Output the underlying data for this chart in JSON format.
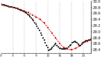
{
  "hours": [
    0,
    1,
    2,
    3,
    4,
    5,
    6,
    7,
    8,
    9,
    10,
    11,
    12,
    13,
    14,
    15,
    16,
    17,
    18,
    19,
    20,
    21,
    22,
    23
  ],
  "pressure": [
    29.88,
    29.85,
    29.82,
    29.8,
    29.76,
    29.72,
    29.68,
    29.62,
    29.55,
    29.48,
    29.4,
    29.28,
    29.12,
    28.95,
    28.78,
    28.6,
    28.48,
    28.42,
    28.4,
    28.44,
    28.52,
    28.62,
    28.68,
    28.72
  ],
  "black_dots_x": [
    0.0,
    0.2,
    0.5,
    0.8,
    1.1,
    1.3,
    1.6,
    1.9,
    2.1,
    2.4,
    2.7,
    3.0,
    3.2,
    3.5,
    3.8,
    4.1,
    4.4,
    4.7,
    5.0,
    5.3,
    5.6,
    5.9,
    6.2,
    6.5,
    6.8,
    7.1,
    7.4,
    7.7,
    8.0,
    8.3,
    8.6,
    8.9,
    9.2,
    9.5,
    9.8,
    10.1,
    10.4,
    10.7,
    11.0,
    11.3,
    11.6,
    11.9,
    12.2,
    12.5,
    12.8,
    13.1,
    13.4,
    13.7,
    14.0,
    14.3,
    14.6,
    14.9,
    15.2,
    15.5,
    15.8,
    16.1,
    16.4,
    16.7,
    17.0,
    17.3,
    17.6,
    17.9,
    18.2,
    18.5,
    18.8,
    19.1,
    19.4,
    19.7,
    20.0,
    20.3,
    20.6,
    20.9,
    21.2,
    21.5,
    21.8,
    22.1,
    22.4,
    22.7,
    23.0
  ],
  "black_dots_y": [
    29.9,
    29.89,
    29.88,
    29.87,
    29.86,
    29.85,
    29.84,
    29.83,
    29.82,
    29.82,
    29.81,
    29.8,
    29.79,
    29.78,
    29.77,
    29.76,
    29.75,
    29.73,
    29.71,
    29.69,
    29.67,
    29.65,
    29.62,
    29.6,
    29.57,
    29.53,
    29.49,
    29.45,
    29.4,
    29.35,
    29.3,
    29.24,
    29.18,
    29.11,
    29.04,
    28.96,
    28.88,
    28.8,
    28.72,
    28.63,
    28.55,
    28.47,
    28.39,
    28.4,
    28.43,
    28.47,
    28.51,
    28.56,
    28.6,
    28.55,
    28.5,
    28.46,
    28.44,
    28.43,
    28.42,
    28.42,
    28.43,
    28.44,
    28.46,
    28.49,
    28.53,
    28.57,
    28.62,
    28.66,
    28.68,
    28.65,
    28.62,
    28.58,
    28.54,
    28.55,
    28.58,
    28.62,
    28.66,
    28.68,
    28.7,
    28.71,
    28.72,
    28.73,
    28.74
  ],
  "ylim": [
    28.3,
    30.0
  ],
  "xlim": [
    0,
    23
  ],
  "ytick_values": [
    28.4,
    28.6,
    28.8,
    29.0,
    29.2,
    29.4,
    29.6,
    29.8,
    30.0
  ],
  "xtick_major": [
    0,
    3,
    6,
    9,
    12,
    15,
    18,
    21
  ],
  "xtick_minor": [
    1,
    2,
    4,
    5,
    7,
    8,
    10,
    11,
    13,
    14,
    16,
    17,
    19,
    20,
    22,
    23
  ],
  "line_color": "#cc0000",
  "scatter_color": "#111111",
  "grid_color": "#999999",
  "bg_color": "#ffffff",
  "ylabel_fontsize": 3.8,
  "xlabel_fontsize": 3.2,
  "vgrid_positions": [
    3,
    6,
    9,
    12,
    15,
    18,
    21
  ]
}
